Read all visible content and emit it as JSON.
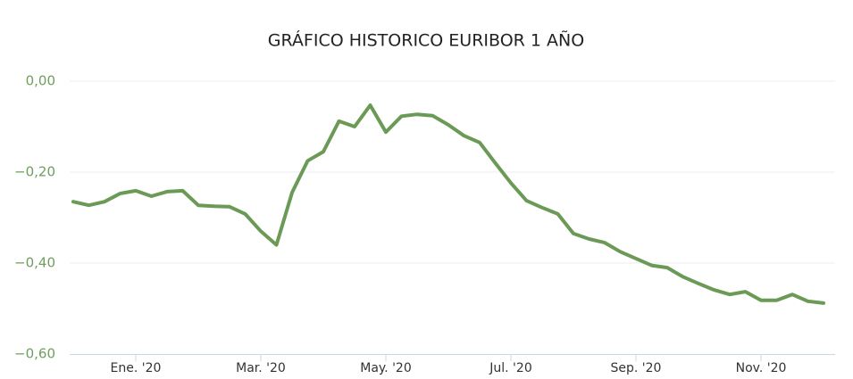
{
  "chart_data": {
    "type": "line",
    "title": "GRÁFICO HISTORICO EURIBOR 1 AÑO",
    "categories": [
      null,
      null,
      null,
      null,
      "Ene. '20",
      null,
      null,
      null,
      null,
      null,
      null,
      null,
      "Mar. '20",
      null,
      null,
      null,
      null,
      null,
      null,
      null,
      "May. '20",
      null,
      null,
      null,
      null,
      null,
      null,
      null,
      "Jul. '20",
      null,
      null,
      null,
      null,
      null,
      null,
      null,
      "Sep. '20",
      null,
      null,
      null,
      null,
      null,
      null,
      null,
      "Nov. '20",
      null,
      null,
      null,
      null
    ],
    "series": [
      {
        "name": "Euribor 1 año",
        "color": "#6b9a57",
        "values": [
          -0.265,
          -0.273,
          -0.265,
          -0.247,
          -0.241,
          -0.253,
          -0.243,
          -0.241,
          -0.273,
          -0.275,
          -0.276,
          -0.292,
          -0.33,
          -0.36,
          -0.245,
          -0.175,
          -0.155,
          -0.088,
          -0.1,
          -0.053,
          -0.112,
          -0.077,
          -0.073,
          -0.076,
          -0.096,
          -0.12,
          -0.135,
          -0.18,
          -0.224,
          -0.263,
          -0.278,
          -0.292,
          -0.335,
          -0.347,
          -0.355,
          -0.375,
          -0.39,
          -0.405,
          -0.41,
          -0.43,
          -0.445,
          -0.459,
          -0.469,
          -0.463,
          -0.482,
          -0.482,
          -0.469,
          -0.484,
          -0.488
        ]
      }
    ],
    "ylim": [
      -0.6,
      0
    ],
    "yticks": [
      {
        "value": 0,
        "label": "0,00"
      },
      {
        "value": -0.2,
        "label": "−0,20"
      },
      {
        "value": -0.4,
        "label": "−0,40"
      },
      {
        "value": -0.6,
        "label": "−0,60"
      }
    ],
    "grid": true
  }
}
